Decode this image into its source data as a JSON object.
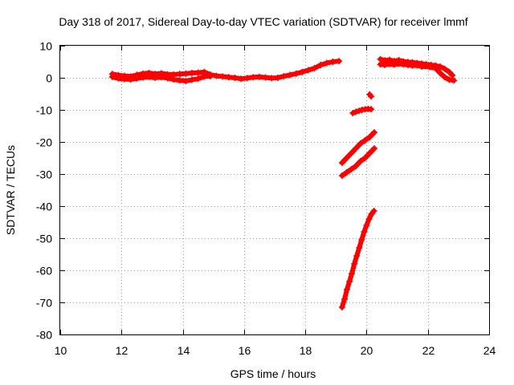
{
  "chart_data": {
    "type": "scatter",
    "title": "Day 318 of 2017, Sidereal Day-to-day VTEC variation (SDTVAR) for receiver lmmf",
    "xlabel": "GPS time / hours",
    "ylabel": "SDTVAR / TECUs",
    "xlim": [
      10,
      24
    ],
    "ylim": [
      -80,
      10
    ],
    "xticks": [
      10,
      12,
      14,
      16,
      18,
      20,
      22,
      24
    ],
    "yticks": [
      -80,
      -70,
      -60,
      -50,
      -40,
      -30,
      -20,
      -10,
      0,
      10
    ],
    "grid": true,
    "legend": "none",
    "marker": "plus",
    "color": "#ff0000",
    "series": [
      {
        "x": [
          11.7,
          11.9,
          12.1,
          12.3,
          12.5,
          12.7,
          12.9,
          13.1,
          13.3,
          13.5,
          13.7,
          13.9,
          14.1,
          14.3,
          14.5,
          14.7,
          14.9,
          15.1,
          15.3,
          15.5,
          15.7,
          15.9,
          16.1,
          16.3,
          16.5,
          16.7,
          16.9,
          17.1,
          17.3,
          17.5,
          17.7,
          17.9,
          18.1,
          18.3,
          18.5,
          18.7,
          18.9,
          19.1
        ],
        "y": [
          1.2,
          0.8,
          0.6,
          0.4,
          0.9,
          1.3,
          1.5,
          1.2,
          1.4,
          1.1,
          1.0,
          1.2,
          1.3,
          1.5,
          1.6,
          1.8,
          1.0,
          0.6,
          0.4,
          0.2,
          0.0,
          -0.3,
          -0.1,
          0.2,
          0.3,
          0.1,
          -0.1,
          0.0,
          0.5,
          0.9,
          1.3,
          1.8,
          2.4,
          3.0,
          4.0,
          4.6,
          5.0,
          5.2
        ]
      },
      {
        "x": [
          11.7,
          11.9,
          12.1,
          12.3,
          12.5,
          12.7,
          12.9,
          13.1,
          13.3,
          13.5,
          13.7,
          13.9,
          14.1,
          14.3,
          14.5,
          14.7,
          14.9
        ],
        "y": [
          0.3,
          -0.2,
          -0.4,
          -0.5,
          -0.2,
          0.1,
          0.3,
          0.0,
          0.2,
          -0.1,
          -0.5,
          -0.8,
          -1.0,
          -0.6,
          -0.3,
          0.4,
          0.5
        ]
      },
      {
        "x": [
          20.45,
          20.6,
          20.75,
          20.9,
          21.05,
          21.2,
          21.35,
          21.5,
          21.65,
          21.8,
          21.95,
          22.1,
          22.25,
          22.4,
          22.55,
          22.7,
          22.8
        ],
        "y": [
          5.8,
          5.4,
          5.6,
          5.2,
          5.5,
          5.1,
          4.9,
          4.8,
          4.6,
          4.4,
          4.2,
          4.0,
          3.8,
          3.5,
          2.8,
          1.8,
          0.8
        ]
      },
      {
        "x": [
          20.45,
          20.6,
          20.75,
          20.9,
          21.05,
          21.2,
          21.35,
          21.5,
          21.65,
          21.8,
          22.05,
          22.25,
          22.4,
          22.55,
          22.7,
          22.85
        ],
        "y": [
          4.2,
          4.0,
          4.3,
          4.1,
          4.4,
          4.2,
          4.0,
          3.8,
          3.9,
          3.5,
          3.4,
          3.0,
          1.5,
          0.2,
          -0.6,
          -0.8
        ]
      },
      {
        "x": [
          20.1,
          20.15
        ],
        "y": [
          -5.2,
          -5.8
        ]
      },
      {
        "x": [
          19.55,
          19.65,
          19.75,
          19.85,
          19.95,
          20.05,
          20.15
        ],
        "y": [
          -11.0,
          -10.6,
          -10.3,
          -10.0,
          -9.8,
          -9.7,
          -9.8
        ]
      },
      {
        "x": [
          19.2,
          19.35,
          19.5,
          19.65,
          19.8,
          19.95,
          20.1,
          20.25
        ],
        "y": [
          -26.5,
          -25.0,
          -23.5,
          -22.0,
          -20.5,
          -19.5,
          -18.5,
          -17.0
        ]
      },
      {
        "x": [
          19.2,
          19.35,
          19.5,
          19.65,
          19.8,
          19.95,
          20.1,
          20.25
        ],
        "y": [
          -30.5,
          -29.5,
          -28.5,
          -27.5,
          -26.0,
          -25.0,
          -23.5,
          -22.0
        ]
      },
      {
        "x": [
          19.2,
          19.28,
          19.36,
          19.44,
          19.52,
          19.6,
          19.68,
          19.76,
          19.84,
          19.92,
          20.0,
          20.08,
          20.16,
          20.24
        ],
        "y": [
          -71.5,
          -69.0,
          -66.0,
          -63.5,
          -61.0,
          -58.0,
          -55.5,
          -53.0,
          -50.5,
          -48.0,
          -46.0,
          -44.0,
          -42.5,
          -41.5
        ]
      }
    ]
  }
}
